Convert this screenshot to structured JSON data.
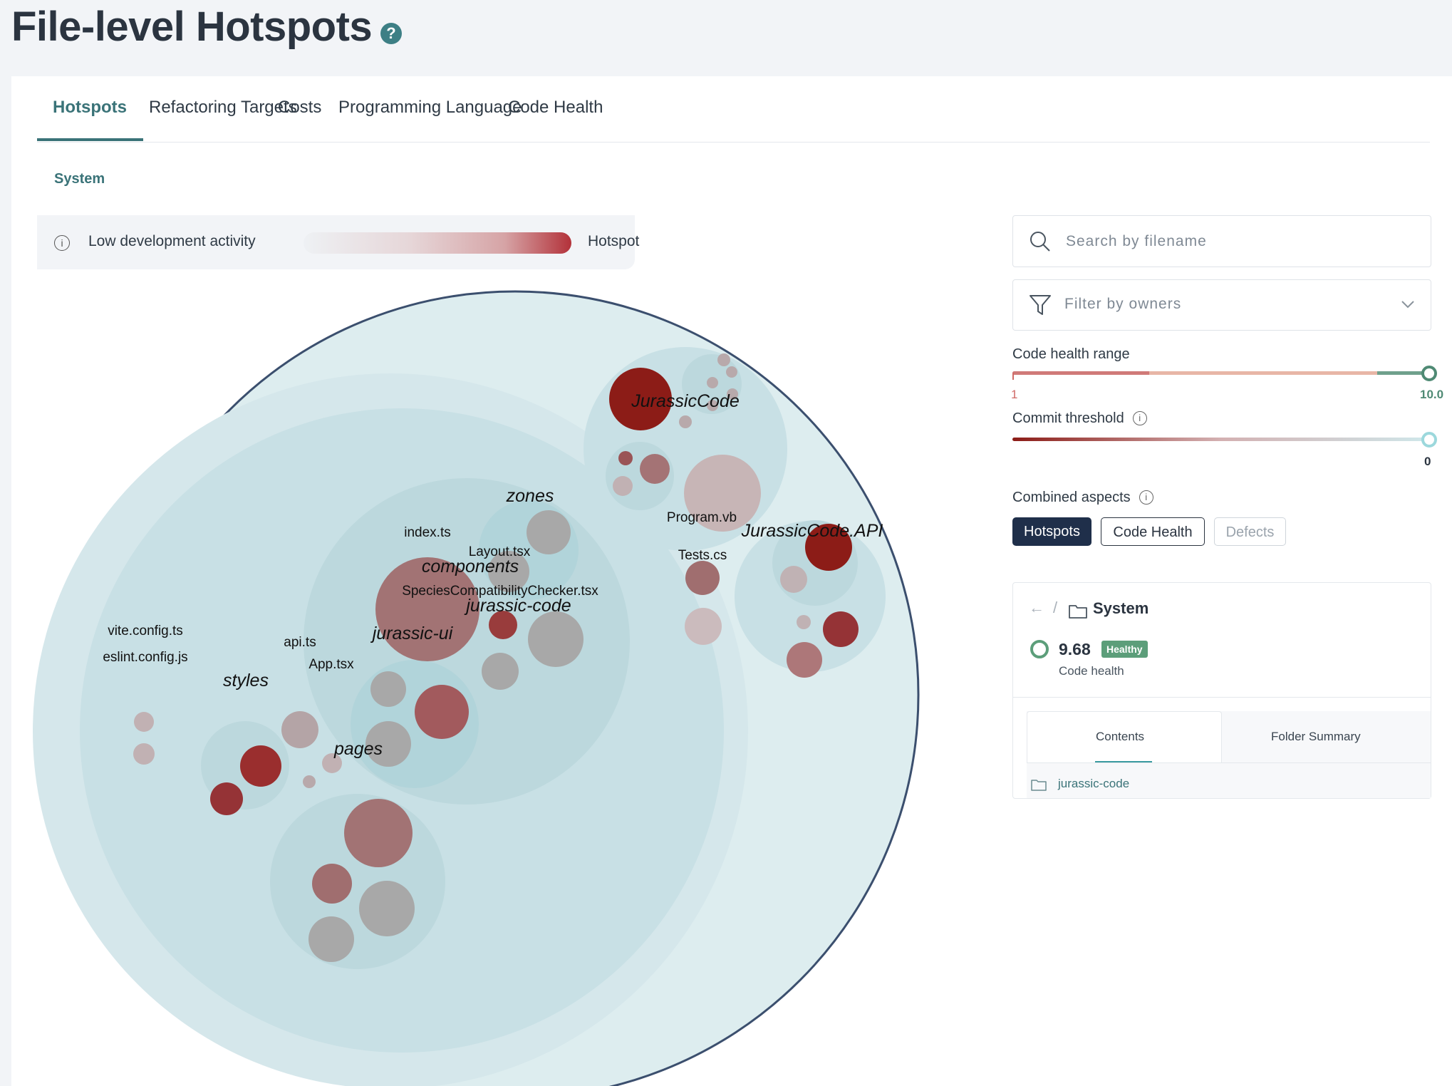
{
  "page": {
    "title": "File-level Hotspots",
    "help_icon": "question-circle-icon"
  },
  "tabs": [
    {
      "label": "Hotspots",
      "active": true
    },
    {
      "label": "Refactoring Targets"
    },
    {
      "label": "Costs"
    },
    {
      "label": "Programming Language"
    },
    {
      "label": "Code Health"
    }
  ],
  "breadcrumb": {
    "system": "System"
  },
  "legend": {
    "low_label": "Low development activity",
    "high_label": "Hotspot",
    "gradient_low": "#eef1f4",
    "gradient_high": "#b3323a"
  },
  "visualization": {
    "directories": [
      "JurassicCode",
      "JurassicCode.API",
      "zones",
      "components",
      "jurassic-code",
      "jurassic-ui",
      "styles",
      "pages"
    ],
    "files": [
      "index.ts",
      "Layout.tsx",
      "SpeciesCompatibilityChecker.tsx",
      "Program.vb",
      "Tests.cs",
      "vite.config.ts",
      "eslint.config.js",
      "api.ts",
      "App.tsx"
    ]
  },
  "search": {
    "placeholder": "Search by filename",
    "icon": "search-icon"
  },
  "owners_filter": {
    "placeholder": "Filter by owners",
    "icon": "filter-icon"
  },
  "code_health_range": {
    "label": "Code health range",
    "min_label": "1",
    "max_label": "10.0",
    "min": 1,
    "max": 10.0
  },
  "commit_threshold": {
    "label": "Commit threshold",
    "value_label": "0",
    "value": 0
  },
  "combined_aspects": {
    "label": "Combined aspects",
    "options": [
      {
        "label": "Hotspots",
        "state": "selected"
      },
      {
        "label": "Code Health",
        "state": "enabled"
      },
      {
        "label": "Defects",
        "state": "disabled"
      }
    ]
  },
  "details": {
    "folder": "System",
    "score": "9.68",
    "badge": "Healthy",
    "score_label": "Code health",
    "score_color": "#5c9e7a",
    "tabs": [
      "Contents",
      "Folder Summary"
    ],
    "items": [
      {
        "name": "jurassic-code",
        "icon": "folder-icon"
      }
    ]
  }
}
